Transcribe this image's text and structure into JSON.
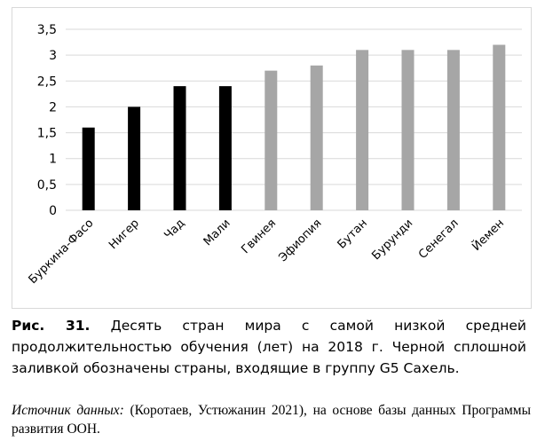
{
  "chart_data": {
    "type": "bar",
    "categories": [
      "Буркина-Фасо",
      "Нигер",
      "Чад",
      "Мали",
      "Гвинея",
      "Эфиопия",
      "Бутан",
      "Бурунди",
      "Сенегал",
      "Йемен"
    ],
    "values": [
      1.6,
      2.0,
      2.4,
      2.4,
      2.7,
      2.8,
      3.1,
      3.1,
      3.1,
      3.2
    ],
    "group": [
      "G5",
      "G5",
      "G5",
      "G5",
      "other",
      "other",
      "other",
      "other",
      "other",
      "other"
    ],
    "colors": {
      "G5": "#000000",
      "other": "#a6a6a6",
      "grid": "#d9d9d9"
    },
    "yticks": [
      "0",
      "0,5",
      "1",
      "1,5",
      "2",
      "2,5",
      "3",
      "3,5"
    ],
    "ylim": [
      0,
      3.5
    ],
    "grid": true,
    "legend": "none"
  },
  "caption": {
    "label": "Рис. 31.",
    "text": "Десять стран мира с самой низкой средней продолжительностью обучения (лет) на 2018 г. Черной сплошной заливкой обозначены страны, входящие в группу G5 Сахель."
  },
  "source": {
    "label": "Источник данных:",
    "text": "(Коротаев, Устюжанин 2021), на основе базы данных Программы развития ООН."
  }
}
